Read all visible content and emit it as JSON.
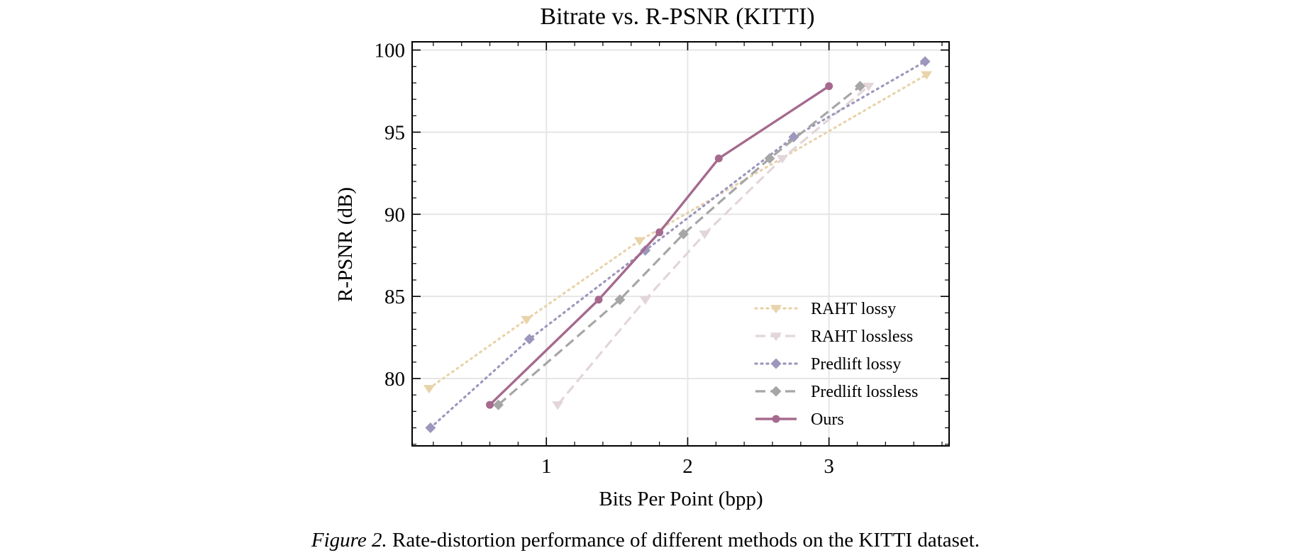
{
  "chart_data": {
    "type": "line",
    "title": "Bitrate vs. R-PSNR (KITTI)",
    "xlabel": "Bits Per Point (bpp)",
    "ylabel": "R-PSNR (dB)",
    "xlim": [
      0.05,
      3.85
    ],
    "ylim": [
      75.9,
      100.5
    ],
    "xticks": [
      1,
      2,
      3
    ],
    "yticks": [
      80,
      85,
      90,
      95,
      100
    ],
    "grid": true,
    "legend_position": "lower-right",
    "series": [
      {
        "name": "RAHT lossy",
        "color": "#e9d3aa",
        "line_style": "dotted",
        "marker": "triangle-down",
        "x": [
          0.17,
          0.86,
          1.66,
          3.69
        ],
        "y": [
          79.4,
          83.6,
          88.4,
          98.5
        ]
      },
      {
        "name": "RAHT lossless",
        "color": "#e2d6d8",
        "line_style": "dashed",
        "marker": "triangle-down",
        "x": [
          1.08,
          1.7,
          2.12,
          2.67,
          3.28
        ],
        "y": [
          78.4,
          84.8,
          88.8,
          93.4,
          97.8
        ]
      },
      {
        "name": "Predlift lossy",
        "color": "#9d97bd",
        "line_style": "dotted",
        "marker": "diamond",
        "x": [
          0.18,
          0.88,
          1.7,
          2.75,
          3.68
        ],
        "y": [
          77.0,
          82.4,
          87.8,
          94.7,
          99.3
        ]
      },
      {
        "name": "Predlift lossless",
        "color": "#a6a6a6",
        "line_style": "dashed",
        "marker": "diamond",
        "x": [
          0.66,
          1.52,
          1.97,
          2.58,
          3.22
        ],
        "y": [
          78.4,
          84.8,
          88.8,
          93.4,
          97.8
        ]
      },
      {
        "name": "Ours",
        "color": "#a56a8e",
        "line_style": "solid",
        "marker": "circle",
        "x": [
          0.6,
          1.37,
          1.8,
          2.22,
          3.0
        ],
        "y": [
          78.4,
          84.8,
          88.9,
          93.4,
          97.8
        ]
      }
    ]
  },
  "caption": {
    "label": "Figure 2.",
    "text": "Rate-distortion performance of different methods on the KITTI dataset."
  }
}
